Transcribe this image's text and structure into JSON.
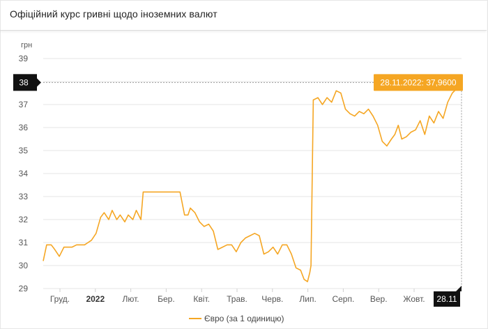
{
  "header": {
    "title": "Офіційний курс гривні щодо іноземних валют"
  },
  "colors": {
    "series": "#f5a623",
    "tooltip_bg": "#f5a623",
    "marker_bg": "#111111",
    "grid": "#e6e6e6"
  },
  "chart_data": {
    "type": "line",
    "title": "",
    "xlabel": "",
    "ylabel": "грн",
    "ylim": [
      29,
      39
    ],
    "yticks": [
      29,
      30,
      31,
      32,
      33,
      34,
      35,
      36,
      37,
      38,
      39
    ],
    "grid": true,
    "legend_position": "bottom",
    "x_tick_labels": [
      "Груд.",
      "2022",
      "Лют.",
      "Бер.",
      "Квіт.",
      "Трав.",
      "Черв.",
      "Лип.",
      "Серп.",
      "Вер.",
      "Жовт."
    ],
    "x_tick_bold": [
      "2022"
    ],
    "x_start": "2021-11-29",
    "x_end": "2022-11-28",
    "highlight": {
      "date": "2022-11-28",
      "y_marker_label": "38",
      "x_marker_label": "28.11",
      "tooltip": "28.11.2022: 37,9600"
    },
    "series": [
      {
        "name": "Євро (за 1 одиницю)",
        "x": [
          "2021-11-29",
          "2021-12-02",
          "2021-12-06",
          "2021-12-09",
          "2021-12-13",
          "2021-12-17",
          "2021-12-21",
          "2021-12-24",
          "2021-12-28",
          "2022-01-04",
          "2022-01-10",
          "2022-01-14",
          "2022-01-18",
          "2022-01-21",
          "2022-01-25",
          "2022-01-28",
          "2022-02-01",
          "2022-02-04",
          "2022-02-08",
          "2022-02-11",
          "2022-02-15",
          "2022-02-18",
          "2022-02-22",
          "2022-02-24",
          "2022-02-28",
          "2022-03-04",
          "2022-03-10",
          "2022-03-16",
          "2022-03-22",
          "2022-03-28",
          "2022-04-01",
          "2022-04-04",
          "2022-04-06",
          "2022-04-10",
          "2022-04-14",
          "2022-04-18",
          "2022-04-22",
          "2022-04-26",
          "2022-04-30",
          "2022-05-04",
          "2022-05-08",
          "2022-05-12",
          "2022-05-16",
          "2022-05-20",
          "2022-05-24",
          "2022-05-28",
          "2022-06-01",
          "2022-06-05",
          "2022-06-09",
          "2022-06-13",
          "2022-06-17",
          "2022-06-21",
          "2022-06-25",
          "2022-06-29",
          "2022-07-03",
          "2022-07-07",
          "2022-07-11",
          "2022-07-14",
          "2022-07-17",
          "2022-07-19",
          "2022-07-20",
          "2022-07-22",
          "2022-07-26",
          "2022-07-30",
          "2022-08-03",
          "2022-08-07",
          "2022-08-11",
          "2022-08-15",
          "2022-08-19",
          "2022-08-23",
          "2022-08-27",
          "2022-08-31",
          "2022-09-04",
          "2022-09-08",
          "2022-09-12",
          "2022-09-16",
          "2022-09-20",
          "2022-09-24",
          "2022-09-28",
          "2022-10-01",
          "2022-10-04",
          "2022-10-07",
          "2022-10-11",
          "2022-10-15",
          "2022-10-19",
          "2022-10-23",
          "2022-10-27",
          "2022-10-31",
          "2022-11-04",
          "2022-11-08",
          "2022-11-12",
          "2022-11-16",
          "2022-11-20",
          "2022-11-24",
          "2022-11-28"
        ],
        "y": [
          30.2,
          30.9,
          30.9,
          30.7,
          30.4,
          30.8,
          30.8,
          30.8,
          30.9,
          30.9,
          31.1,
          31.4,
          32.1,
          32.3,
          32.0,
          32.4,
          32.0,
          32.2,
          31.9,
          32.2,
          32.0,
          32.4,
          32.0,
          33.2,
          33.2,
          33.2,
          33.2,
          33.2,
          33.2,
          33.2,
          32.2,
          32.2,
          32.5,
          32.3,
          31.9,
          31.7,
          31.8,
          31.5,
          30.7,
          30.8,
          30.9,
          30.9,
          30.6,
          31.0,
          31.2,
          31.3,
          31.4,
          31.3,
          30.5,
          30.6,
          30.8,
          30.5,
          30.9,
          30.9,
          30.5,
          29.9,
          29.8,
          29.4,
          29.3,
          29.7,
          30.0,
          37.2,
          37.3,
          37.0,
          37.3,
          37.1,
          37.6,
          37.5,
          36.8,
          36.6,
          36.5,
          36.7,
          36.6,
          36.8,
          36.5,
          36.1,
          35.4,
          35.2,
          35.5,
          35.7,
          36.1,
          35.5,
          35.6,
          35.8,
          35.9,
          36.3,
          35.7,
          36.5,
          36.2,
          36.7,
          36.4,
          37.1,
          37.5,
          37.7,
          37.96
        ]
      }
    ]
  }
}
